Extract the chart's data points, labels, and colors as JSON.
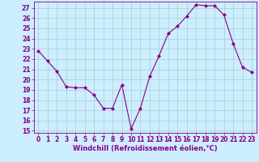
{
  "x": [
    0,
    1,
    2,
    3,
    4,
    5,
    6,
    7,
    8,
    9,
    10,
    11,
    12,
    13,
    14,
    15,
    16,
    17,
    18,
    19,
    20,
    21,
    22,
    23
  ],
  "y": [
    22.8,
    21.8,
    20.8,
    19.3,
    19.2,
    19.2,
    18.5,
    17.2,
    17.2,
    19.5,
    15.2,
    17.2,
    20.3,
    22.3,
    24.5,
    25.2,
    26.2,
    27.3,
    27.2,
    27.2,
    26.3,
    23.5,
    21.2,
    20.7
  ],
  "line_color": "#880088",
  "marker": "D",
  "markersize": 2.0,
  "linewidth": 0.8,
  "xlabel": "Windchill (Refroidissement éolien,°C)",
  "xlabel_fontsize": 6.0,
  "ylim": [
    14.8,
    27.6
  ],
  "xlim": [
    -0.5,
    23.5
  ],
  "yticks": [
    15,
    16,
    17,
    18,
    19,
    20,
    21,
    22,
    23,
    24,
    25,
    26,
    27
  ],
  "xticks": [
    0,
    1,
    2,
    3,
    4,
    5,
    6,
    7,
    8,
    9,
    10,
    11,
    12,
    13,
    14,
    15,
    16,
    17,
    18,
    19,
    20,
    21,
    22,
    23
  ],
  "bg_color": "#cceeff",
  "grid_color": "#aacccc",
  "tick_color": "#880088",
  "tick_fontsize": 5.5,
  "spine_color": "#880088"
}
